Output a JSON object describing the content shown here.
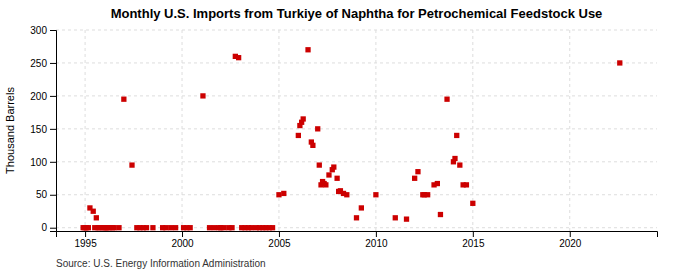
{
  "chart_data": {
    "type": "scatter",
    "title": "Monthly U.S. Imports from Turkiye of Naphtha for Petrochemical Feedstock Use",
    "ylabel": "Thousand Barrels",
    "source": "Source: U.S. Energy Information Administration",
    "color": "#cc0000",
    "marker": "square",
    "grid": true,
    "xlim": [
      1993.5,
      2024.5
    ],
    "xticks": [
      1995,
      2000,
      2005,
      2010,
      2015,
      2020
    ],
    "ylim": [
      -5,
      300
    ],
    "yticks": [
      0,
      50,
      100,
      150,
      200,
      250,
      300
    ],
    "x": [
      1995.25,
      1995.42,
      1995.58,
      1994.9,
      1995.0,
      1995.08,
      1995.17,
      1995.5,
      1995.67,
      1995.75,
      1995.92,
      1996.0,
      1996.08,
      1996.17,
      1996.25,
      1996.42,
      1996.5,
      1996.75,
      1997.0,
      1997.42,
      1997.67,
      1997.83,
      1998.0,
      1998.17,
      1998.5,
      1999.0,
      1999.17,
      1999.42,
      1999.67,
      2000.08,
      2000.25,
      2000.42,
      2001.08,
      2001.42,
      2001.67,
      2001.92,
      2002.0,
      2002.17,
      2002.42,
      2002.58,
      2002.75,
      2002.92,
      2003.08,
      2003.25,
      2003.42,
      2003.58,
      2003.83,
      2004.0,
      2004.17,
      2004.33,
      2004.5,
      2004.67,
      2005.0,
      2005.25,
      2006.0,
      2006.08,
      2006.17,
      2006.25,
      2006.5,
      2006.67,
      2006.75,
      2007.0,
      2007.08,
      2007.17,
      2007.25,
      2007.33,
      2007.42,
      2007.58,
      2007.75,
      2007.83,
      2008.0,
      2008.08,
      2008.17,
      2008.33,
      2008.5,
      2009.0,
      2009.25,
      2010.0,
      2011.0,
      2011.58,
      2012.0,
      2012.17,
      2012.42,
      2012.5,
      2012.67,
      2013.0,
      2013.17,
      2013.33,
      2013.67,
      2014.0,
      2014.08,
      2014.17,
      2014.33,
      2014.5,
      2014.67,
      2015.0,
      2022.58
    ],
    "values": [
      30,
      25,
      15,
      0,
      0,
      0,
      0,
      0,
      0,
      0,
      0,
      0,
      0,
      0,
      0,
      0,
      0,
      0,
      195,
      95,
      0,
      0,
      0,
      0,
      0,
      0,
      0,
      0,
      0,
      0,
      0,
      0,
      200,
      0,
      0,
      0,
      0,
      0,
      0,
      0,
      260,
      258,
      0,
      0,
      0,
      0,
      0,
      0,
      0,
      0,
      0,
      0,
      50,
      52,
      140,
      155,
      160,
      165,
      270,
      130,
      125,
      150,
      95,
      65,
      70,
      67,
      65,
      80,
      88,
      92,
      75,
      55,
      56,
      52,
      50,
      15,
      30,
      50,
      15,
      13,
      75,
      85,
      50,
      50,
      50,
      65,
      67,
      20,
      195,
      100,
      105,
      140,
      95,
      65,
      65,
      37,
      250
    ]
  }
}
